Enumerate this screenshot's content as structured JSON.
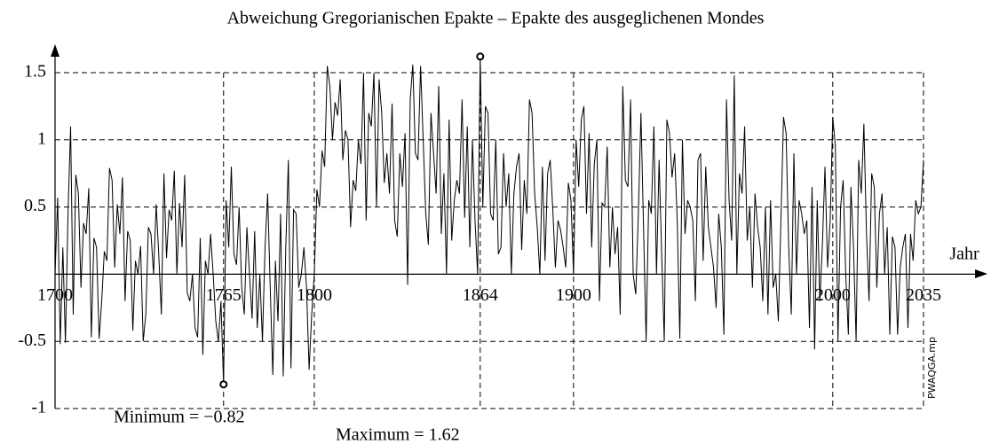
{
  "chart_data": {
    "type": "line",
    "title": "Abweichung Gregorianischen Epakte – Epakte des ausgeglichenen Mondes",
    "x_label": "Jahr",
    "watermark": "PWAQGA.mp",
    "x": [
      1700,
      1701,
      1702,
      1703,
      1704,
      1705,
      1706,
      1707,
      1708,
      1709,
      1710,
      1711,
      1712,
      1713,
      1714,
      1715,
      1716,
      1717,
      1718,
      1719,
      1720,
      1721,
      1722,
      1723,
      1724,
      1725,
      1726,
      1727,
      1728,
      1729,
      1730,
      1731,
      1732,
      1733,
      1734,
      1735,
      1736,
      1737,
      1738,
      1739,
      1740,
      1741,
      1742,
      1743,
      1744,
      1745,
      1746,
      1747,
      1748,
      1749,
      1750,
      1751,
      1752,
      1753,
      1754,
      1755,
      1756,
      1757,
      1758,
      1759,
      1760,
      1761,
      1762,
      1763,
      1764,
      1765,
      1766,
      1767,
      1768,
      1769,
      1770,
      1771,
      1772,
      1773,
      1774,
      1775,
      1776,
      1777,
      1778,
      1779,
      1780,
      1781,
      1782,
      1783,
      1784,
      1785,
      1786,
      1787,
      1788,
      1789,
      1790,
      1791,
      1792,
      1793,
      1794,
      1795,
      1796,
      1797,
      1798,
      1799,
      1800,
      1801,
      1802,
      1803,
      1804,
      1805,
      1806,
      1807,
      1808,
      1809,
      1810,
      1811,
      1812,
      1813,
      1814,
      1815,
      1816,
      1817,
      1818,
      1819,
      1820,
      1821,
      1822,
      1823,
      1824,
      1825,
      1826,
      1827,
      1828,
      1829,
      1830,
      1831,
      1832,
      1833,
      1834,
      1835,
      1836,
      1837,
      1838,
      1839,
      1840,
      1841,
      1842,
      1843,
      1844,
      1845,
      1846,
      1847,
      1848,
      1849,
      1850,
      1851,
      1852,
      1853,
      1854,
      1855,
      1856,
      1857,
      1858,
      1859,
      1860,
      1861,
      1862,
      1863,
      1864,
      1865,
      1866,
      1867,
      1868,
      1869,
      1870,
      1871,
      1872,
      1873,
      1874,
      1875,
      1876,
      1877,
      1878,
      1879,
      1880,
      1881,
      1882,
      1883,
      1884,
      1885,
      1886,
      1887,
      1888,
      1889,
      1890,
      1891,
      1892,
      1893,
      1894,
      1895,
      1896,
      1897,
      1898,
      1899,
      1900,
      1901,
      1902,
      1903,
      1904,
      1905,
      1906,
      1907,
      1908,
      1909,
      1910,
      1911,
      1912,
      1913,
      1914,
      1915,
      1916,
      1917,
      1918,
      1919,
      1920,
      1921,
      1922,
      1923,
      1924,
      1925,
      1926,
      1927,
      1928,
      1929,
      1930,
      1931,
      1932,
      1933,
      1934,
      1935,
      1936,
      1937,
      1938,
      1939,
      1940,
      1941,
      1942,
      1943,
      1944,
      1945,
      1946,
      1947,
      1948,
      1949,
      1950,
      1951,
      1952,
      1953,
      1954,
      1955,
      1956,
      1957,
      1958,
      1959,
      1960,
      1961,
      1962,
      1963,
      1964,
      1965,
      1966,
      1967,
      1968,
      1969,
      1970,
      1971,
      1972,
      1973,
      1974,
      1975,
      1976,
      1977,
      1978,
      1979,
      1980,
      1981,
      1982,
      1983,
      1984,
      1985,
      1986,
      1987,
      1988,
      1989,
      1990,
      1991,
      1992,
      1993,
      1994,
      1995,
      1996,
      1997,
      1998,
      1999,
      2000,
      2001,
      2002,
      2003,
      2004,
      2005,
      2006,
      2007,
      2008,
      2009,
      2010,
      2011,
      2012,
      2013,
      2014,
      2015,
      2016,
      2017,
      2018,
      2019,
      2020,
      2021,
      2022,
      2023,
      2024,
      2025,
      2026,
      2027,
      2028,
      2029,
      2030,
      2031,
      2032,
      2033,
      2034,
      2035
    ],
    "values": [
      0.0,
      0.57,
      -0.52,
      0.2,
      -0.51,
      0.45,
      1.1,
      -0.3,
      0.74,
      0.6,
      -0.1,
      0.38,
      0.3,
      0.64,
      -0.47,
      0.27,
      0.2,
      -0.48,
      -0.2,
      0.17,
      0.1,
      0.79,
      0.7,
      0.05,
      0.52,
      0.3,
      0.72,
      -0.2,
      0.32,
      0.25,
      -0.42,
      0.1,
      0.0,
      0.21,
      -0.5,
      -0.3,
      0.35,
      0.3,
      0.0,
      0.52,
      0.15,
      -0.3,
      0.75,
      0.12,
      0.48,
      0.4,
      0.77,
      0.0,
      0.53,
      0.2,
      0.74,
      -0.14,
      -0.2,
      0.0,
      -0.4,
      -0.47,
      0.27,
      -0.6,
      0.1,
      0.0,
      0.3,
      0.0,
      -0.35,
      -0.5,
      -0.2,
      -0.82,
      0.55,
      0.2,
      0.8,
      0.15,
      0.07,
      0.5,
      -0.1,
      -0.3,
      0.35,
      0.0,
      -0.33,
      0.32,
      -0.4,
      0.0,
      -0.5,
      0.2,
      0.6,
      -0.1,
      -0.75,
      0.1,
      -0.35,
      0.45,
      -0.76,
      0.2,
      0.85,
      -0.7,
      0.48,
      0.45,
      -0.1,
      0.0,
      0.2,
      -0.1,
      -0.71,
      -0.3,
      0.0,
      0.63,
      0.5,
      0.92,
      0.8,
      1.55,
      1.4,
      1.0,
      1.28,
      1.18,
      1.45,
      0.85,
      1.07,
      1.0,
      0.35,
      0.7,
      0.62,
      1.0,
      0.82,
      1.5,
      0.4,
      1.2,
      1.1,
      1.5,
      0.5,
      1.45,
      1.2,
      0.68,
      0.9,
      0.6,
      1.27,
      0.4,
      0.28,
      0.9,
      0.65,
      1.05,
      -0.08,
      1.3,
      1.56,
      0.9,
      0.85,
      1.55,
      1.0,
      0.45,
      0.22,
      1.2,
      0.9,
      0.6,
      1.4,
      0.3,
      0.75,
      0.0,
      1.15,
      0.25,
      0.55,
      0.7,
      0.6,
      1.3,
      0.42,
      1.1,
      0.2,
      1.0,
      0.4,
      0.0,
      1.62,
      0.5,
      1.25,
      1.2,
      0.45,
      0.4,
      1.0,
      0.15,
      0.2,
      0.9,
      0.5,
      0.75,
      0.0,
      0.6,
      0.8,
      0.9,
      0.18,
      0.7,
      0.45,
      1.3,
      1.2,
      0.6,
      0.35,
      0.0,
      0.8,
      0.1,
      0.75,
      0.85,
      0.48,
      0.05,
      0.4,
      0.33,
      0.2,
      0.05,
      0.68,
      0.55,
      0.0,
      1.0,
      0.65,
      1.15,
      1.25,
      0.45,
      1.05,
      0.2,
      0.82,
      1.0,
      -0.2,
      0.53,
      0.5,
      0.95,
      0.05,
      0.5,
      0.15,
      0.35,
      -0.3,
      1.4,
      0.7,
      0.65,
      1.3,
      0.0,
      -0.15,
      0.45,
      1.2,
      0.35,
      -0.5,
      0.55,
      0.45,
      1.1,
      0.0,
      0.85,
      0.15,
      -0.5,
      1.15,
      1.05,
      0.72,
      0.9,
      0.4,
      -0.48,
      1.0,
      0.3,
      0.55,
      0.5,
      0.4,
      -0.2,
      0.85,
      0.9,
      0.1,
      0.8,
      0.35,
      0.2,
      0.05,
      -0.25,
      0.45,
      0.2,
      -0.45,
      1.3,
      0.55,
      0.25,
      1.48,
      0.0,
      0.75,
      0.6,
      1.1,
      0.25,
      0.5,
      -0.1,
      0.6,
      0.35,
      0.2,
      -0.2,
      0.5,
      -0.3,
      0.55,
      -0.1,
      0.0,
      -0.35,
      0.4,
      1.17,
      1.05,
      0.2,
      -0.3,
      0.9,
      0.0,
      0.55,
      0.45,
      0.3,
      0.4,
      -0.4,
      0.65,
      -0.56,
      0.55,
      -0.2,
      0.22,
      0.8,
      0.05,
      0.4,
      1.17,
      0.95,
      -0.5,
      0.5,
      0.7,
      0.0,
      -0.45,
      0.65,
      0.2,
      -0.5,
      0.85,
      0.6,
      1.12,
      0.3,
      -0.2,
      0.75,
      0.65,
      -0.1,
      0.45,
      0.6,
      0.0,
      0.35,
      -0.45,
      0.28,
      0.2,
      -0.45,
      0.05,
      0.2,
      0.3,
      -0.4,
      0.3,
      0.1,
      0.55,
      0.45,
      0.5,
      0.85
    ],
    "color": "#000000",
    "xlim": [
      1700,
      2035
    ],
    "xticks": [
      1700,
      1765,
      1800,
      1864,
      1900,
      2000,
      2035
    ],
    "ylim": [
      -1,
      1.5
    ],
    "yticks": [
      -1,
      -0.5,
      0.5,
      1,
      1.5
    ],
    "grid": true,
    "annotations": [
      {
        "text": "Minimum = −0.82",
        "x": 1765,
        "y": -0.82
      },
      {
        "text": "Maximum = 1.62",
        "x": 1864,
        "y": 1.62
      }
    ]
  }
}
